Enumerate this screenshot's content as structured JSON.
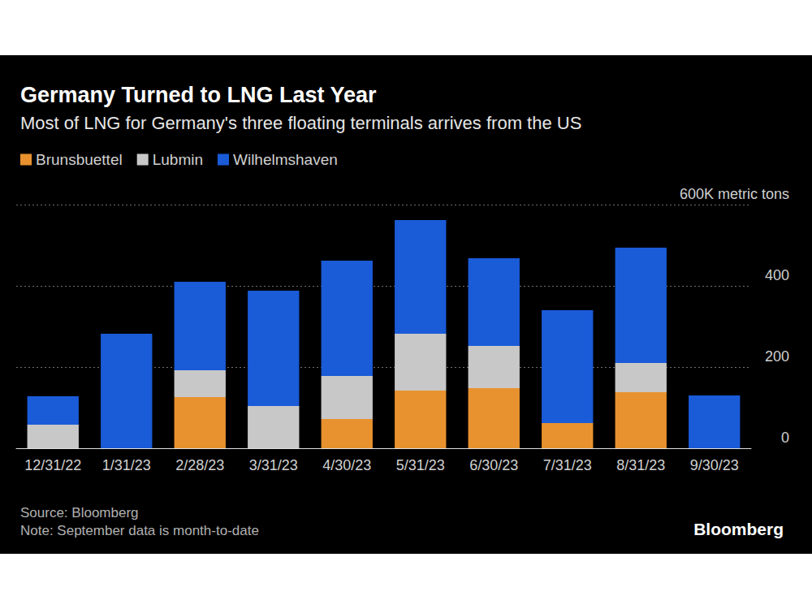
{
  "chart_data": {
    "type": "bar",
    "title": "Germany Turned to LNG Last Year",
    "subtitle": "Most of LNG for Germany's three floating terminals arrives from the US",
    "categories": [
      "12/31/22",
      "1/31/23",
      "2/28/23",
      "3/31/23",
      "4/30/23",
      "5/31/23",
      "6/30/23",
      "7/31/23",
      "8/31/23",
      "9/30/23"
    ],
    "series": [
      {
        "name": "Brunsbuettel",
        "color": "#e8922f",
        "values": [
          0,
          0,
          126,
          0,
          72,
          142,
          148,
          62,
          138,
          0
        ]
      },
      {
        "name": "Lubmin",
        "color": "#c8c8c8",
        "values": [
          58,
          0,
          66,
          104,
          106,
          140,
          104,
          0,
          72,
          0
        ]
      },
      {
        "name": "Wilhelmshaven",
        "color": "#1a5bd8",
        "values": [
          70,
          282,
          218,
          284,
          284,
          280,
          216,
          278,
          284,
          130
        ]
      }
    ],
    "ylim": [
      0,
      600
    ],
    "yticks": [
      0,
      200,
      400,
      {
        "value": 600,
        "label": "600K metric tons"
      }
    ],
    "stacked": true,
    "grid": true,
    "legend": "top-left",
    "source": "Source: Bloomberg",
    "note": "Note: September data is month-to-date",
    "brand": "Bloomberg"
  }
}
